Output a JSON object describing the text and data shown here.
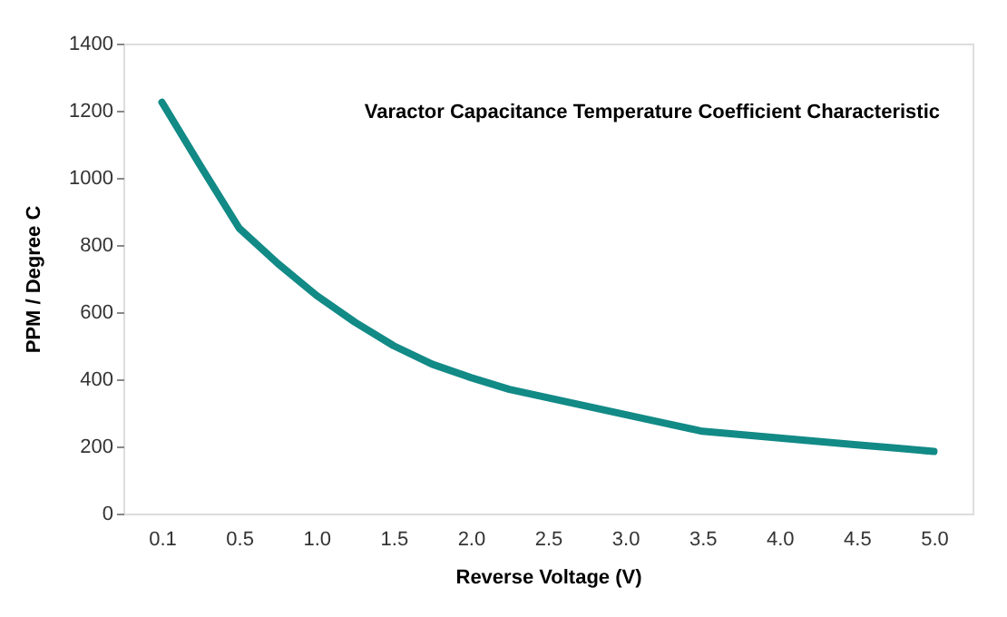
{
  "chart_data": {
    "type": "line",
    "title": "Varactor Capacitance Temperature Coefficient Characteristic",
    "xlabel": "Reverse Voltage (V)",
    "ylabel": "PPM / Degree C",
    "categories": [
      "0.1",
      null,
      "0.5",
      null,
      "1.0",
      null,
      "1.5",
      null,
      "2.0",
      null,
      "2.5",
      null,
      "3.0",
      null,
      "3.5",
      null,
      "4.0",
      null,
      "4.5",
      null,
      "5.0"
    ],
    "series": [
      {
        "color": "#128a86",
        "values": [
          1225,
          1035,
          850,
          745,
          650,
          570,
          500,
          445,
          405,
          370,
          345,
          320,
          295,
          270,
          245,
          235,
          225,
          215,
          205,
          195,
          185
        ]
      }
    ],
    "ylim": [
      0,
      1400
    ],
    "yticks": [
      0,
      200,
      400,
      600,
      800,
      1000,
      1200,
      1400
    ],
    "grid": false,
    "legend": false,
    "marker": "none",
    "line_style": "solid"
  }
}
